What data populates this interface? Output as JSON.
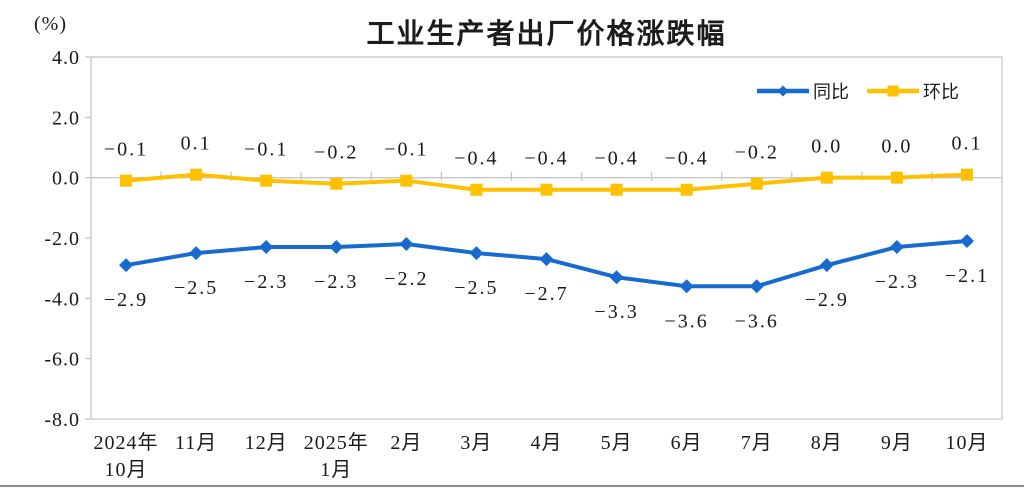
{
  "chart": {
    "unit_label": "(%)",
    "title": "工业生产者出厂价格涨跌幅"
  },
  "chart_data": {
    "type": "line",
    "title": "工业生产者出厂价格涨跌幅",
    "unit": "(%)",
    "categories": [
      "2024年\n10月",
      "11月",
      "12月",
      "2025年\n1月",
      "2月",
      "3月",
      "4月",
      "5月",
      "6月",
      "7月",
      "8月",
      "9月",
      "10月"
    ],
    "series": [
      {
        "id": "yoy",
        "name": "同比",
        "color": "#186bce",
        "marker": "diamond",
        "label_position": "below",
        "values": [
          -2.9,
          -2.5,
          -2.3,
          -2.3,
          -2.2,
          -2.5,
          -2.7,
          -3.3,
          -3.6,
          -3.6,
          -2.9,
          -2.3,
          -2.1
        ]
      },
      {
        "id": "mom",
        "name": "环比",
        "color": "#ffc000",
        "marker": "square",
        "label_position": "above",
        "values": [
          -0.1,
          0.1,
          -0.1,
          -0.2,
          -0.1,
          -0.4,
          -0.4,
          -0.4,
          -0.4,
          -0.2,
          0.0,
          0.0,
          0.1
        ]
      }
    ],
    "ylim": [
      -8.0,
      4.0
    ],
    "y_ticks": [
      4.0,
      2.0,
      0.0,
      -2.0,
      -4.0,
      -6.0,
      -8.0
    ],
    "grid": false,
    "legend_position": "top-right",
    "axis_color": "#c6c6c6",
    "text_color": "#1a1a1a"
  }
}
